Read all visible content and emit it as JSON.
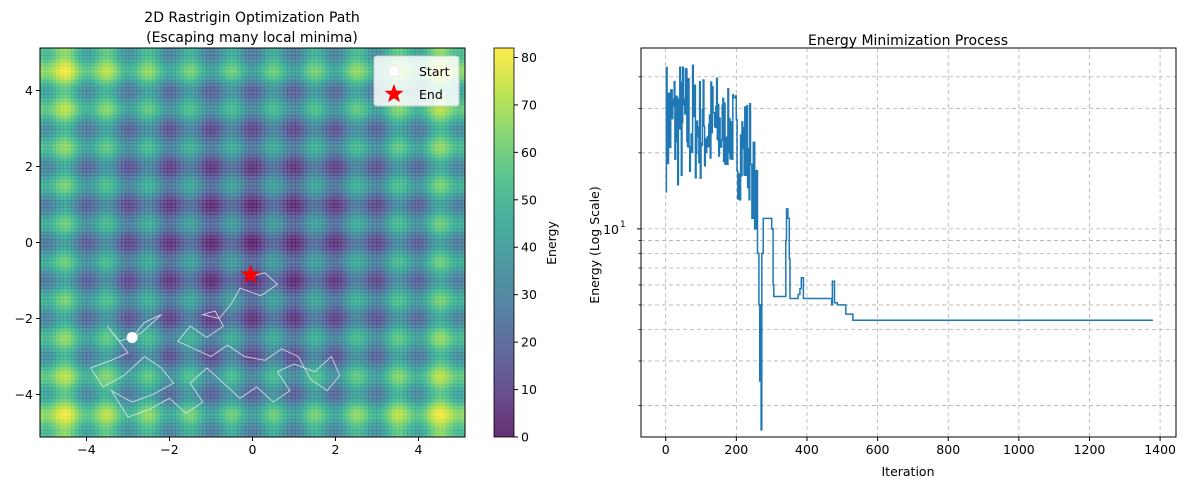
{
  "colors": {
    "viridis": [
      "#440154",
      "#482878",
      "#3e4989",
      "#31688e",
      "#26828e",
      "#1f9e89",
      "#35b779",
      "#6ece58",
      "#b5de2b",
      "#fde725"
    ],
    "path_line": "#e8e8f0",
    "start_marker": "#ffffff",
    "end_marker": "#ff0000",
    "energy_line": "#1f77b4",
    "grid": "#b0b0b0"
  },
  "chart_data": [
    {
      "type": "heatmap",
      "title_line1": "2D Rastrigin Optimization Path",
      "title_line2": "(Escaping many local minima)",
      "function": "rastrigin",
      "xlim": [
        -5.12,
        5.12
      ],
      "ylim": [
        -5.12,
        5.12
      ],
      "xticks": [
        -4,
        -2,
        0,
        2,
        4
      ],
      "yticks": [
        -4,
        -2,
        0,
        2,
        4
      ],
      "colorbar": {
        "label": "Energy",
        "range": [
          0,
          82
        ],
        "ticks": [
          0,
          10,
          20,
          30,
          40,
          50,
          60,
          70,
          80
        ]
      },
      "legend": {
        "placement": "top-right",
        "start_label": "Start",
        "end_label": "End"
      },
      "start": [
        -2.9,
        -2.5
      ],
      "end": [
        -0.05,
        -0.85
      ],
      "path_points": [
        [
          -2.9,
          -2.5
        ],
        [
          -2.6,
          -2.1
        ],
        [
          -2.2,
          -1.9
        ],
        [
          -2.7,
          -2.4
        ],
        [
          -3.2,
          -2.6
        ],
        [
          -3.5,
          -2.2
        ],
        [
          -3.0,
          -2.9
        ],
        [
          -3.4,
          -3.1
        ],
        [
          -3.9,
          -3.3
        ],
        [
          -3.6,
          -3.8
        ],
        [
          -3.1,
          -3.5
        ],
        [
          -2.6,
          -3.0
        ],
        [
          -2.2,
          -3.3
        ],
        [
          -1.9,
          -3.7
        ],
        [
          -2.4,
          -4.0
        ],
        [
          -2.9,
          -4.2
        ],
        [
          -3.4,
          -3.9
        ],
        [
          -3.0,
          -4.6
        ],
        [
          -2.5,
          -4.4
        ],
        [
          -2.0,
          -4.1
        ],
        [
          -1.6,
          -4.5
        ],
        [
          -1.2,
          -4.2
        ],
        [
          -1.5,
          -3.7
        ],
        [
          -1.1,
          -3.3
        ],
        [
          -0.7,
          -3.7
        ],
        [
          -0.3,
          -4.1
        ],
        [
          0.1,
          -3.8
        ],
        [
          0.5,
          -4.2
        ],
        [
          0.9,
          -3.9
        ],
        [
          0.6,
          -3.4
        ],
        [
          1.0,
          -3.2
        ],
        [
          1.5,
          -3.4
        ],
        [
          1.9,
          -3.0
        ],
        [
          2.1,
          -3.5
        ],
        [
          1.8,
          -3.9
        ],
        [
          1.4,
          -3.6
        ],
        [
          1.1,
          -3.0
        ],
        [
          0.7,
          -2.8
        ],
        [
          0.3,
          -3.1
        ],
        [
          -0.2,
          -3.0
        ],
        [
          -0.6,
          -2.7
        ],
        [
          -1.0,
          -3.0
        ],
        [
          -1.4,
          -2.8
        ],
        [
          -1.8,
          -2.6
        ],
        [
          -1.5,
          -2.2
        ],
        [
          -1.1,
          -2.5
        ],
        [
          -0.7,
          -2.2
        ],
        [
          -0.9,
          -1.8
        ],
        [
          -1.2,
          -1.9
        ],
        [
          -0.8,
          -2.0
        ],
        [
          -0.5,
          -1.6
        ],
        [
          -0.3,
          -1.2
        ],
        [
          0.2,
          -1.4
        ],
        [
          0.6,
          -1.1
        ],
        [
          0.3,
          -0.8
        ],
        [
          -0.1,
          -0.9
        ],
        [
          -0.05,
          -0.85
        ]
      ],
      "path_points_note": "approximate random-walk trajectory"
    },
    {
      "type": "line",
      "title": "Energy Minimization Process",
      "xlabel": "Iteration",
      "ylabel": "Energy (Log Scale)",
      "yscale": "log",
      "xlim": [
        -70,
        1445
      ],
      "ylim": [
        1.5,
        52
      ],
      "xticks": [
        0,
        200,
        400,
        600,
        800,
        1000,
        1200,
        1400
      ],
      "ytick_major": [
        {
          "value": 10,
          "label": "10",
          "exp": "1"
        }
      ],
      "ygrid_minor": [
        2,
        3,
        4,
        5,
        6,
        7,
        8,
        9,
        20,
        30,
        40
      ],
      "grid": true,
      "segments": [
        {
          "x0": 0,
          "x1": 80,
          "min": 14,
          "max": 48
        },
        {
          "x0": 80,
          "x1": 160,
          "min": 15,
          "max": 42
        },
        {
          "x0": 160,
          "x1": 200,
          "min": 17,
          "max": 36
        },
        {
          "x0": 200,
          "x1": 240,
          "min": 13,
          "max": 34
        }
      ],
      "steps": [
        [
          240,
          18
        ],
        [
          244,
          11
        ],
        [
          248,
          22
        ],
        [
          252,
          10
        ],
        [
          256,
          17
        ],
        [
          260,
          8
        ],
        [
          264,
          5
        ],
        [
          266,
          2.5
        ],
        [
          268,
          5
        ],
        [
          270,
          1.6
        ],
        [
          272,
          8
        ],
        [
          276,
          11
        ],
        [
          300,
          10
        ],
        [
          304,
          6
        ],
        [
          306,
          5.4
        ],
        [
          340,
          9
        ],
        [
          342,
          12
        ],
        [
          346,
          11
        ],
        [
          350,
          7.6
        ],
        [
          352,
          5.3
        ],
        [
          375,
          5.5
        ],
        [
          380,
          5.8
        ],
        [
          384,
          6.4
        ],
        [
          390,
          5.3
        ],
        [
          470,
          5
        ],
        [
          472,
          6.2
        ],
        [
          478,
          5.1
        ],
        [
          486,
          5
        ],
        [
          510,
          4.6
        ],
        [
          530,
          4.35
        ],
        [
          1380,
          4.35
        ]
      ],
      "steps_note": "approximate best-energy trajectory after the noisy exploration phase"
    }
  ]
}
